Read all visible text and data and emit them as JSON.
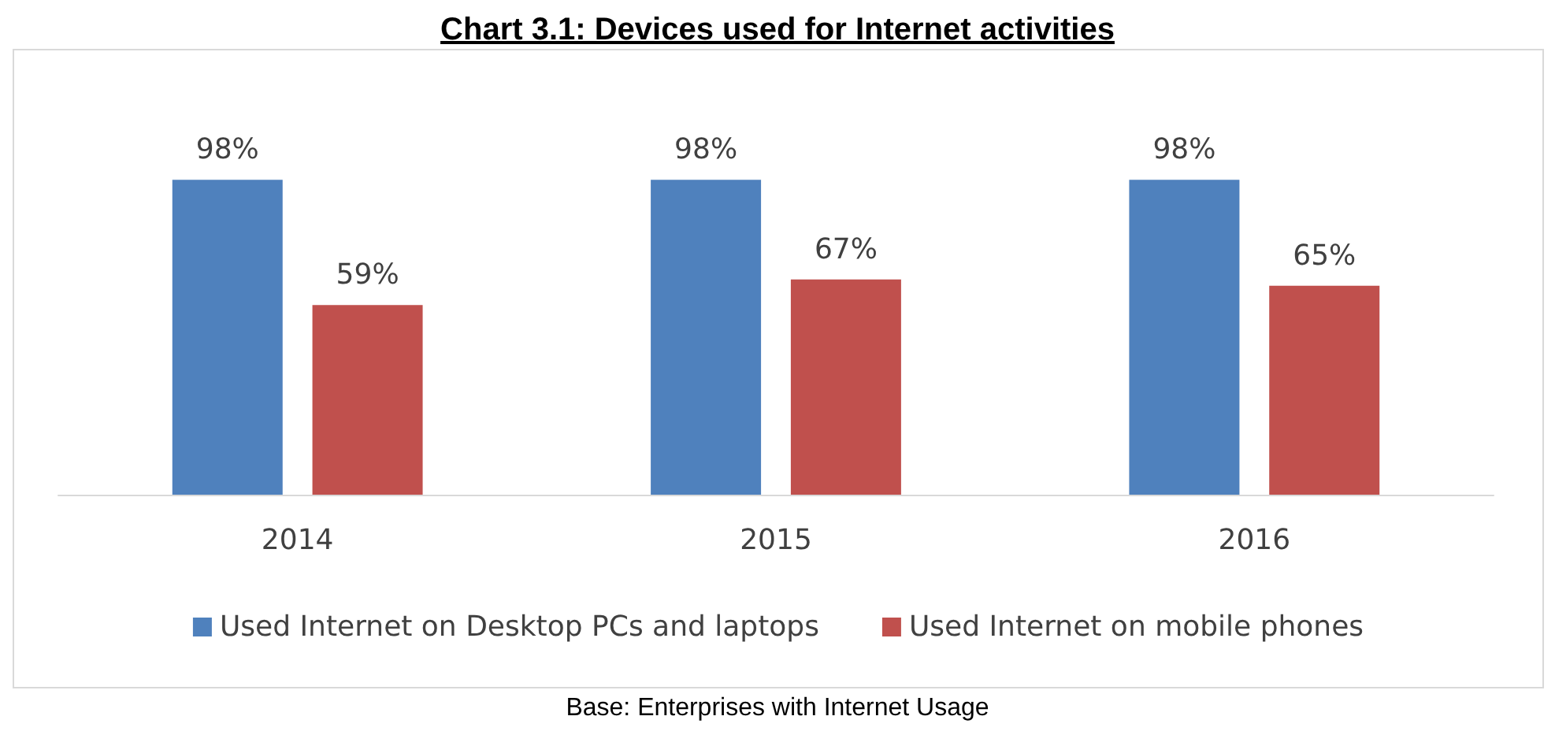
{
  "chart_data": {
    "type": "bar",
    "title": "Chart 3.1: Devices used for Internet activities",
    "categories": [
      "2014",
      "2015",
      "2016"
    ],
    "series": [
      {
        "name": "Used Internet on Desktop PCs and laptops",
        "color": "#4f81bd",
        "values": [
          98,
          98,
          98
        ],
        "value_labels": [
          "98%",
          "98%",
          "98%"
        ]
      },
      {
        "name": "Used Internet on mobile phones",
        "color": "#c0504d",
        "values": [
          59,
          67,
          65
        ],
        "value_labels": [
          "59%",
          "67%",
          "65%"
        ]
      }
    ],
    "legend": "bottom",
    "annotations": [
      "Base: Enterprises with Internet Usage"
    ]
  }
}
